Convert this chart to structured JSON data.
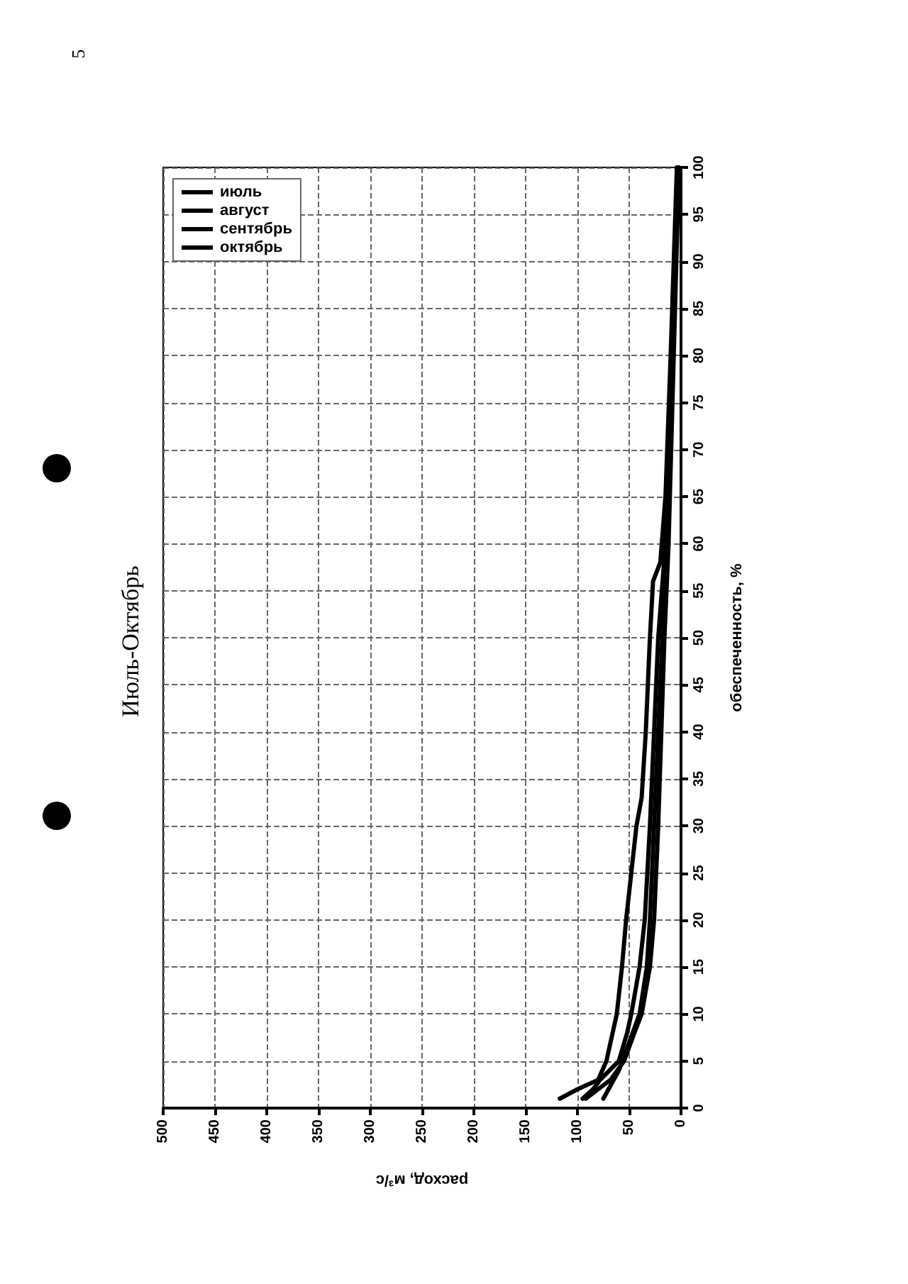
{
  "chart_data": {
    "type": "line",
    "title": "Июль-Октябрь",
    "xlabel": "расход, м³/с",
    "ylabel": "обеспеченность, %",
    "annotations": [
      "5"
    ],
    "xlim": [
      500,
      0
    ],
    "xticks": [
      0,
      50,
      100,
      150,
      200,
      250,
      300,
      350,
      400,
      450,
      500
    ],
    "ylim": [
      0,
      100
    ],
    "yticks": [
      0,
      5,
      10,
      15,
      20,
      25,
      30,
      35,
      40,
      45,
      50,
      55,
      60,
      65,
      70,
      75,
      80,
      85,
      90,
      95,
      100
    ],
    "grid": true,
    "legend": "top left",
    "marker": "none",
    "line_style": "solid",
    "series": [
      {
        "name": "июль",
        "color": "#000000",
        "x": [
          117,
          100,
          80,
          72,
          62,
          57,
          53,
          48,
          43,
          38,
          34,
          30,
          27,
          20,
          15,
          10,
          4
        ],
        "values": [
          1,
          2,
          3,
          5,
          10,
          15,
          20,
          25,
          30,
          33,
          40,
          50,
          56,
          58,
          65,
          80,
          100
        ]
      },
      {
        "name": "август",
        "color": "#000000",
        "x": [
          95,
          85,
          78,
          60,
          52,
          48,
          40,
          35,
          30,
          26,
          22,
          15,
          9,
          3
        ],
        "values": [
          1,
          2,
          3,
          5,
          8,
          10,
          15,
          20,
          30,
          40,
          50,
          60,
          80,
          100
        ]
      },
      {
        "name": "сентябрь",
        "color": "#000000",
        "x": [
          75,
          70,
          60,
          50,
          40,
          33,
          30,
          26,
          22,
          18,
          13,
          8,
          3
        ],
        "values": [
          1,
          2,
          4,
          7,
          10,
          15,
          20,
          30,
          40,
          50,
          60,
          80,
          100
        ]
      },
      {
        "name": "октябрь",
        "color": "#000000",
        "x": [
          92,
          80,
          68,
          55,
          45,
          38,
          30,
          26,
          22,
          19,
          16,
          12,
          7,
          2
        ],
        "values": [
          1,
          2,
          3,
          5,
          8,
          10,
          15,
          20,
          30,
          40,
          50,
          60,
          80,
          100
        ]
      }
    ]
  }
}
